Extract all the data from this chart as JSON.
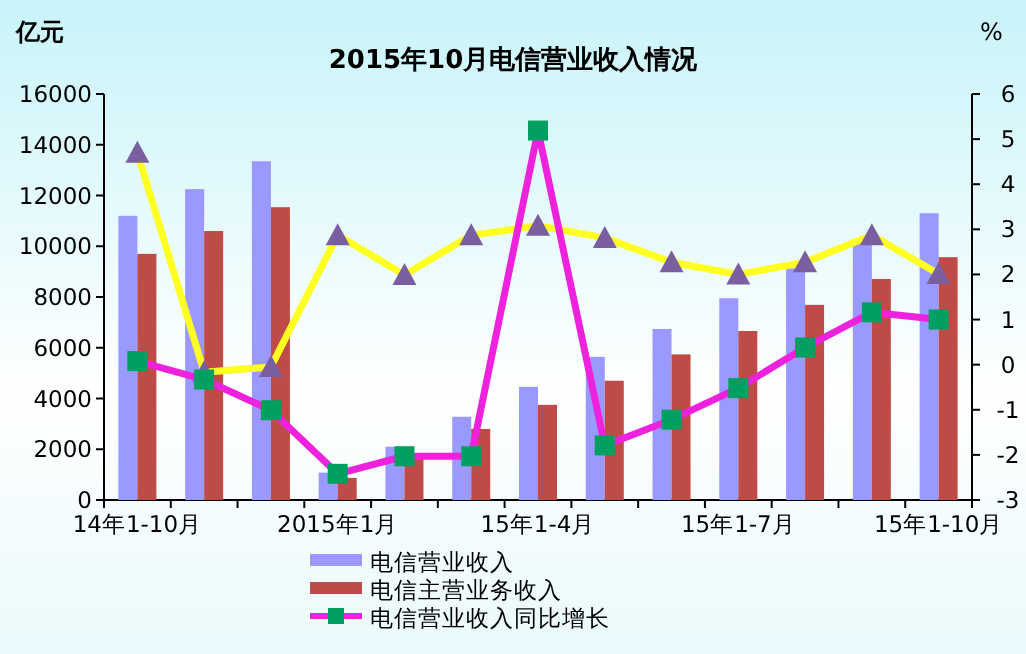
{
  "chart_data": {
    "type": "bar",
    "title": "2015年10月电信营业收入情况",
    "ylabel": "亿元",
    "y2label": "%",
    "categories": [
      "14年1-10月",
      null,
      null,
      "2015年1月",
      null,
      null,
      "15年1-4月",
      null,
      null,
      "15年1-7月",
      null,
      null,
      "15年1-10月"
    ],
    "series": [
      {
        "name": "电信营业收入",
        "color": "#9999ff",
        "values": [
          11200,
          12250,
          13350,
          1080,
          2100,
          3280,
          4460,
          5640,
          6740,
          7950,
          9130,
          10230,
          11300
        ]
      },
      {
        "name": "电信主营业务收入",
        "color": "#be4b48",
        "values": [
          9700,
          10600,
          11540,
          870,
          1750,
          2800,
          3750,
          4700,
          5740,
          6660,
          7690,
          8710,
          9570
        ]
      },
      {
        "name": "电信营业收入同比增长",
        "type": "line",
        "axis": "y2",
        "color": "#ee22dd",
        "marker": "square",
        "values": [
          0.08,
          -0.33,
          -1.01,
          -2.42,
          -2.03,
          -2.03,
          5.19,
          -1.79,
          -1.22,
          -0.52,
          0.38,
          1.16,
          1.0
        ]
      },
      {
        "type": "line",
        "axis": "y2",
        "color": "#ffff22",
        "marker": "triangle",
        "values": [
          4.7,
          -0.17,
          -0.05,
          2.87,
          1.99,
          2.87,
          3.08,
          2.81,
          2.27,
          2.0,
          2.27,
          2.87,
          2.01
        ]
      }
    ],
    "ylim": [
      0,
      16000
    ],
    "yticks": [
      0,
      2000,
      4000,
      6000,
      8000,
      10000,
      12000,
      14000,
      16000
    ],
    "y2lim": [
      -3,
      6
    ],
    "y2ticks": [
      -3,
      -2,
      -1,
      0,
      1,
      2,
      3,
      4,
      5,
      6
    ],
    "legend": "bottom",
    "grid": false
  }
}
